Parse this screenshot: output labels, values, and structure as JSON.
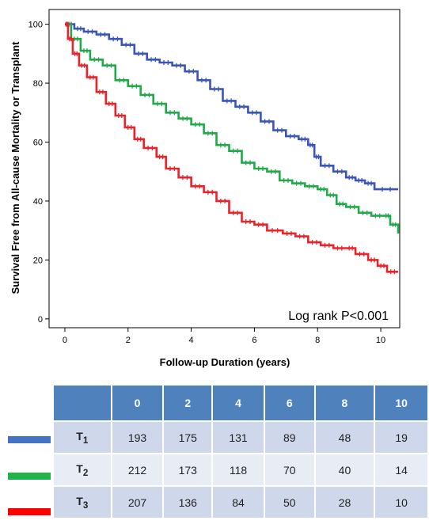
{
  "chart_data": {
    "type": "line",
    "ylabel": "Survival Free from All-cause Mortality or Transplant",
    "xlabel": "Follow-up Duration (years)",
    "annotation": "Log rank P<0.001",
    "xlim": [
      -0.5,
      10.6
    ],
    "ylim": [
      -3,
      105
    ],
    "x_ticks": [
      0,
      2,
      4,
      6,
      8,
      10
    ],
    "y_ticks": [
      0,
      20,
      40,
      60,
      80,
      100
    ],
    "grid": false,
    "series": [
      {
        "name": "T1",
        "color": "#3a55b5",
        "points": [
          [
            0,
            100
          ],
          [
            0.3,
            98.5
          ],
          [
            0.6,
            97.5
          ],
          [
            1.0,
            96.5
          ],
          [
            1.4,
            95
          ],
          [
            1.8,
            93
          ],
          [
            2.2,
            90
          ],
          [
            2.6,
            88
          ],
          [
            3.0,
            87
          ],
          [
            3.4,
            86
          ],
          [
            3.8,
            84
          ],
          [
            4.2,
            81
          ],
          [
            4.6,
            78
          ],
          [
            5.0,
            74
          ],
          [
            5.4,
            72
          ],
          [
            5.8,
            70
          ],
          [
            6.2,
            67
          ],
          [
            6.6,
            64
          ],
          [
            7.0,
            62
          ],
          [
            7.4,
            61
          ],
          [
            7.7,
            59
          ],
          [
            7.9,
            55
          ],
          [
            8.1,
            52
          ],
          [
            8.5,
            50
          ],
          [
            8.9,
            48
          ],
          [
            9.2,
            47
          ],
          [
            9.5,
            46
          ],
          [
            9.8,
            44
          ],
          [
            10.55,
            44
          ]
        ]
      },
      {
        "name": "T2",
        "color": "#22a84a",
        "points": [
          [
            0,
            100
          ],
          [
            0.2,
            95
          ],
          [
            0.5,
            91
          ],
          [
            0.8,
            88
          ],
          [
            1.2,
            86
          ],
          [
            1.6,
            81
          ],
          [
            2.0,
            79
          ],
          [
            2.4,
            76
          ],
          [
            2.8,
            73
          ],
          [
            3.2,
            70
          ],
          [
            3.6,
            68
          ],
          [
            4.0,
            66
          ],
          [
            4.4,
            63
          ],
          [
            4.8,
            59
          ],
          [
            5.2,
            57
          ],
          [
            5.6,
            53
          ],
          [
            6.0,
            51
          ],
          [
            6.4,
            50
          ],
          [
            6.8,
            47
          ],
          [
            7.2,
            46
          ],
          [
            7.6,
            45
          ],
          [
            8.0,
            44
          ],
          [
            8.3,
            42
          ],
          [
            8.6,
            39
          ],
          [
            8.9,
            38
          ],
          [
            9.3,
            36
          ],
          [
            9.7,
            35
          ],
          [
            10.1,
            35
          ],
          [
            10.3,
            32
          ],
          [
            10.55,
            29
          ]
        ]
      },
      {
        "name": "T3",
        "color": "#e8232a",
        "points": [
          [
            0,
            100
          ],
          [
            0.1,
            95
          ],
          [
            0.25,
            90
          ],
          [
            0.45,
            86
          ],
          [
            0.7,
            82
          ],
          [
            1.0,
            77
          ],
          [
            1.3,
            73
          ],
          [
            1.6,
            69
          ],
          [
            1.9,
            65
          ],
          [
            2.2,
            61
          ],
          [
            2.5,
            58
          ],
          [
            2.9,
            55
          ],
          [
            3.2,
            51
          ],
          [
            3.6,
            48
          ],
          [
            4.0,
            45
          ],
          [
            4.4,
            43
          ],
          [
            4.8,
            40
          ],
          [
            5.2,
            36
          ],
          [
            5.6,
            33
          ],
          [
            6.0,
            32
          ],
          [
            6.4,
            30
          ],
          [
            6.9,
            29
          ],
          [
            7.3,
            28
          ],
          [
            7.7,
            26
          ],
          [
            8.1,
            25
          ],
          [
            8.5,
            24
          ],
          [
            8.9,
            24
          ],
          [
            9.2,
            22
          ],
          [
            9.6,
            20
          ],
          [
            9.9,
            18
          ],
          [
            10.2,
            16
          ],
          [
            10.55,
            16
          ]
        ]
      }
    ]
  },
  "risk_table": {
    "header": [
      "",
      "0",
      "2",
      "4",
      "6",
      "8",
      "10"
    ],
    "rows": [
      {
        "label": "T",
        "sub": "1",
        "color": "#4472c4",
        "values": [
          "193",
          "175",
          "131",
          "89",
          "48",
          "19"
        ]
      },
      {
        "label": "T",
        "sub": "2",
        "color": "#1fb44a",
        "values": [
          "212",
          "173",
          "118",
          "70",
          "40",
          "14"
        ]
      },
      {
        "label": "T",
        "sub": "3",
        "color": "#ff0000",
        "values": [
          "207",
          "136",
          "84",
          "50",
          "28",
          "10"
        ]
      }
    ]
  }
}
